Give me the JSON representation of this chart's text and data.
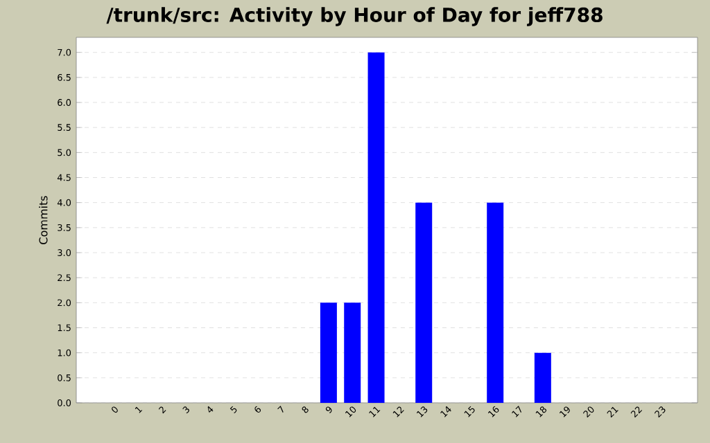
{
  "chart_data": {
    "type": "bar",
    "title": "/trunk/src: Activity by Hour of Day for jeff788",
    "ylabel": "Commits",
    "categories": [
      "0",
      "1",
      "2",
      "3",
      "4",
      "5",
      "6",
      "7",
      "8",
      "9",
      "10",
      "11",
      "12",
      "13",
      "14",
      "15",
      "16",
      "17",
      "18",
      "19",
      "20",
      "21",
      "22",
      "23"
    ],
    "values": [
      0,
      0,
      0,
      0,
      0,
      0,
      0,
      0,
      0,
      2,
      2,
      7,
      0,
      4,
      0,
      0,
      4,
      0,
      1,
      0,
      0,
      0,
      0,
      0
    ],
    "color": "#0000ff",
    "ylim": [
      0,
      7.3
    ],
    "yticks": [
      {
        "value": 0,
        "label": "0.0"
      },
      {
        "value": 0.5,
        "label": "0.5"
      },
      {
        "value": 1,
        "label": "1.0"
      },
      {
        "value": 1.5,
        "label": "1.5"
      },
      {
        "value": 2,
        "label": "2.0"
      },
      {
        "value": 2.5,
        "label": "2.5"
      },
      {
        "value": 3,
        "label": "3.0"
      },
      {
        "value": 3.5,
        "label": "3.5"
      },
      {
        "value": 4,
        "label": "4.0"
      },
      {
        "value": 4.5,
        "label": "4.5"
      },
      {
        "value": 5,
        "label": "5.0"
      },
      {
        "value": 5.5,
        "label": "5.5"
      },
      {
        "value": 6,
        "label": "6.0"
      },
      {
        "value": 6.5,
        "label": "6.5"
      },
      {
        "value": 7,
        "label": "7.0"
      }
    ],
    "grid": "y"
  }
}
